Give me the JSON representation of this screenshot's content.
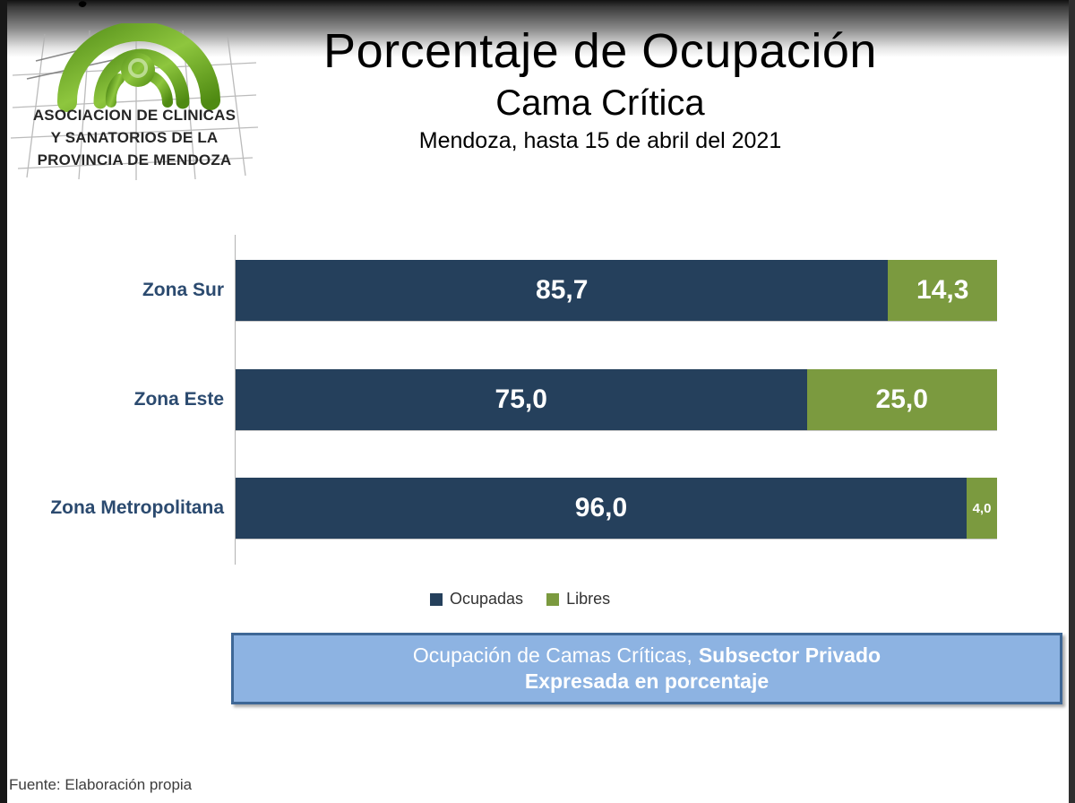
{
  "header": {
    "title": "Porcentaje de Ocupación",
    "subtitle": "Cama Crítica",
    "date_line": "Mendoza, hasta 15 de abril del 2021"
  },
  "logo": {
    "line1": "ASOCIACION DE CLINICAS",
    "line2": "Y SANATORIOS DE LA",
    "line3": "PROVINCIA DE MENDOZA"
  },
  "chart_data": {
    "type": "bar",
    "orientation": "horizontal",
    "stacked": true,
    "title": "Porcentaje de Ocupación — Cama Crítica",
    "categories": [
      "Zona Sur",
      "Zona Este",
      "Zona Metropolitana"
    ],
    "series": [
      {
        "name": "Ocupadas",
        "color": "#25405C",
        "values": [
          85.7,
          75.0,
          96.0
        ],
        "display_labels": [
          "85,7",
          "75,0",
          "96,0"
        ]
      },
      {
        "name": "Libres",
        "color": "#7B9A3F",
        "values": [
          14.3,
          25.0,
          4.0
        ],
        "display_labels": [
          "14,3",
          "25,0",
          "4,0"
        ]
      }
    ],
    "xlim": [
      0,
      100
    ],
    "unit": "percent",
    "grid": false,
    "legend_position": "bottom"
  },
  "caption": {
    "text_regular": "Ocupación de Camas Críticas,",
    "text_bold": "Subsector Privado",
    "line2_bold": "Expresada en porcentaje"
  },
  "footer": {
    "text": "Fuente: Elaboración propia"
  },
  "colors": {
    "ocupadas": "#25405C",
    "libres": "#7B9A3F",
    "category_label": "#2B4A6F",
    "caption_fill": "#8DB3E2",
    "caption_border": "#3E6796",
    "caption_text": "#FFFFFF",
    "logo_green": "#6FA822"
  }
}
